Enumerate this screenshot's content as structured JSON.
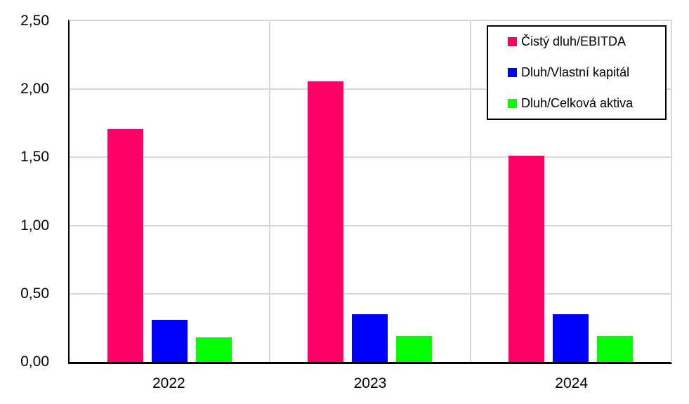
{
  "chart_data": {
    "type": "bar",
    "categories": [
      "2022",
      "2023",
      "2024"
    ],
    "series": [
      {
        "name": "Čistý dluh/EBITDA",
        "color": "#FF0066",
        "values": [
          1.71,
          2.06,
          1.51
        ]
      },
      {
        "name": "Dluh/Vlastní kapitál",
        "color": "#0000FF",
        "values": [
          0.31,
          0.35,
          0.35
        ]
      },
      {
        "name": "Dluh/Celková aktiva",
        "color": "#00FF00",
        "values": [
          0.18,
          0.19,
          0.19
        ]
      }
    ],
    "ylim": [
      0,
      2.5
    ],
    "ytick_step": 0.5,
    "ytick_labels": [
      "0,00",
      "0,50",
      "1,00",
      "1,50",
      "2,00",
      "2,50"
    ],
    "grid": true,
    "legend_position": "top-right",
    "decimal_separator": ",",
    "colors": {
      "grid": "#D9D9D9",
      "axis": "#000000",
      "background": "#FFFFFF",
      "legend_border": "#000000"
    }
  }
}
